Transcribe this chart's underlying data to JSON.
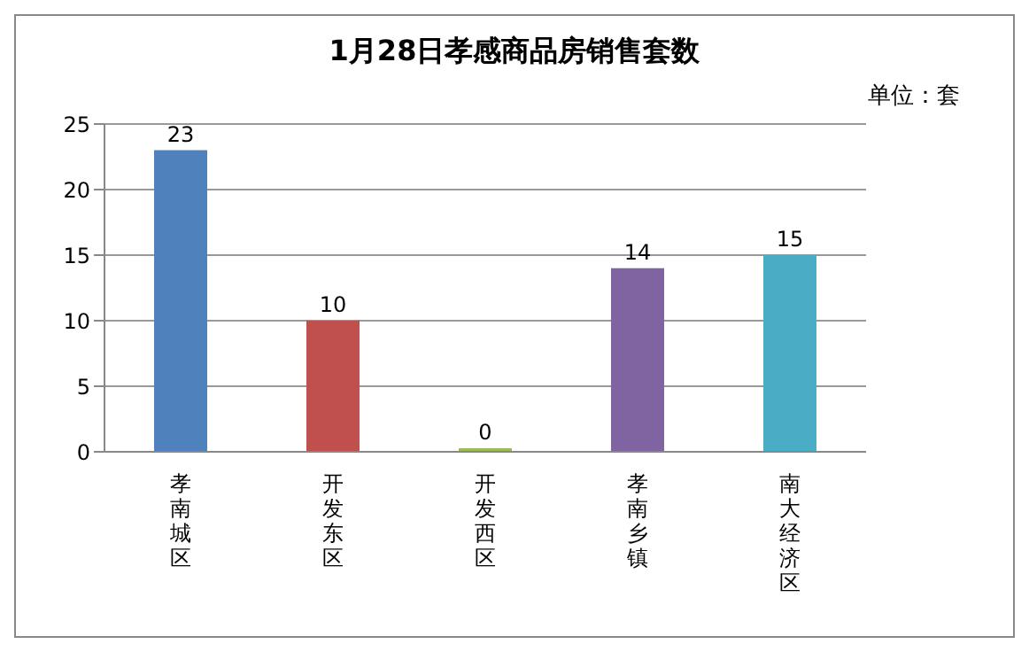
{
  "chart_data": {
    "type": "bar",
    "title": "1月28日孝感商品房销售套数",
    "subtitle": "单位：套",
    "categories": [
      "孝南城区",
      "开发东区",
      "开发西区",
      "孝南乡镇",
      "南大经济区"
    ],
    "values": [
      23,
      10,
      0,
      14,
      15
    ],
    "colors": [
      "#4f81bd",
      "#c0504d",
      "#9bbb59",
      "#8064a2",
      "#4bacc6"
    ],
    "ylim": [
      0,
      25
    ],
    "yticks": [
      0,
      5,
      10,
      15,
      20,
      25
    ],
    "grid": "y",
    "data_labels": true
  }
}
